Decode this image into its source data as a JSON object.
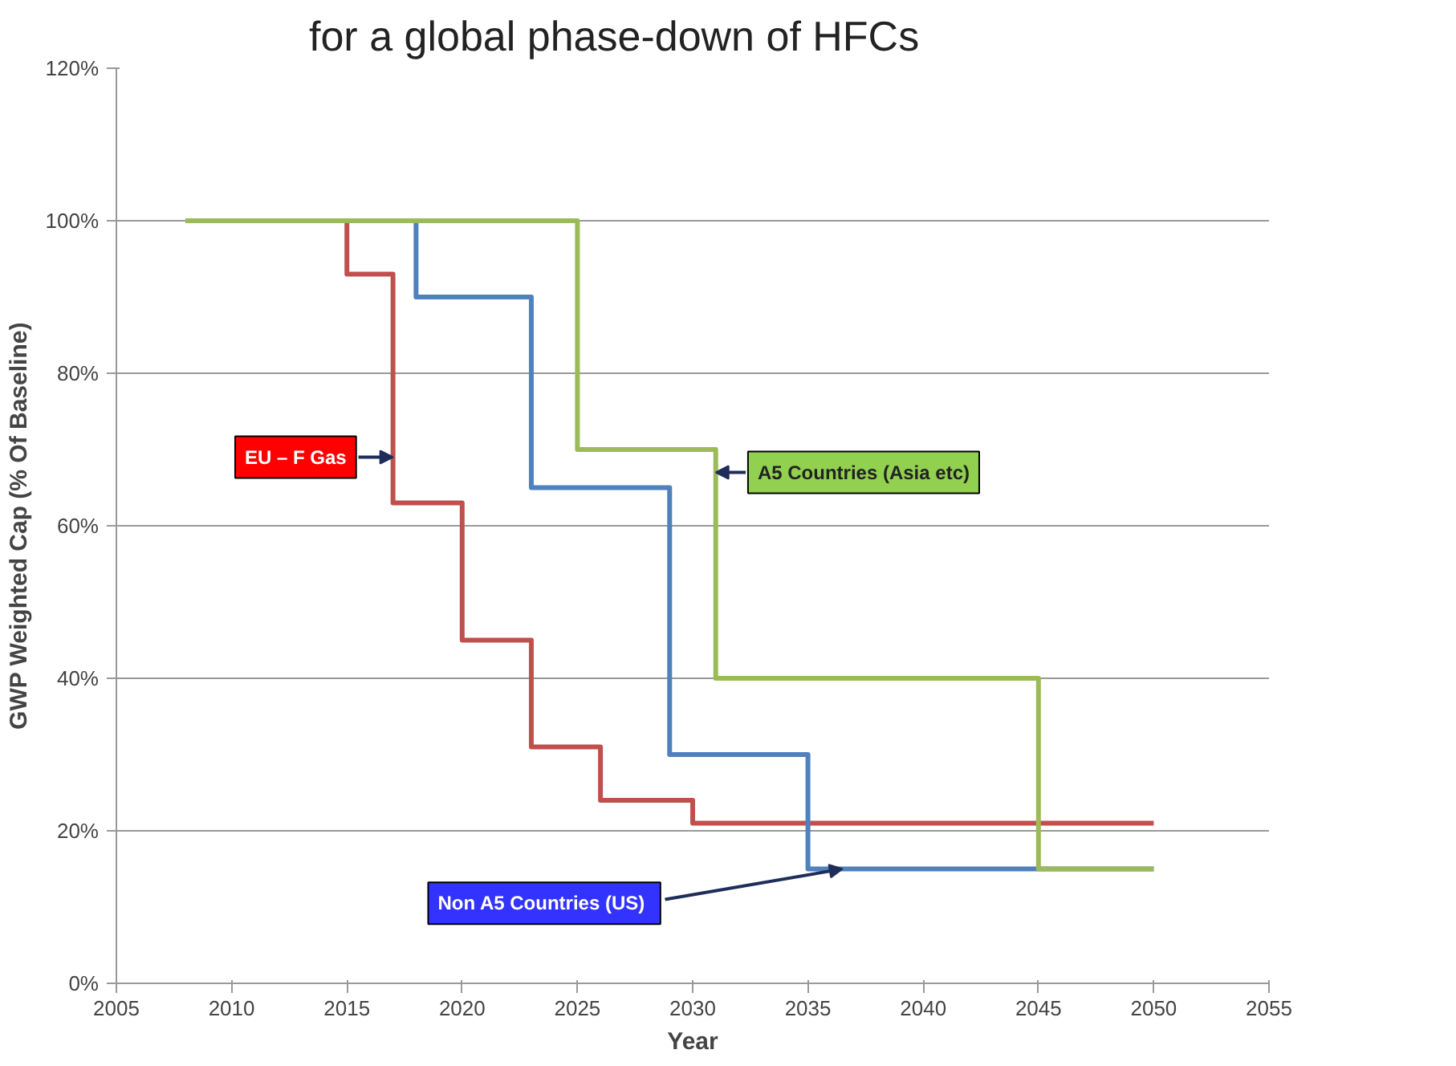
{
  "chart_data": {
    "type": "step",
    "title": "for a global phase-down of HFCs",
    "xlabel": "Year",
    "ylabel": "GWP Weighted Cap (% Of Baseline)",
    "xlim": [
      2005,
      2055
    ],
    "xticks": [
      2005,
      2010,
      2015,
      2020,
      2025,
      2030,
      2035,
      2040,
      2045,
      2050,
      2055
    ],
    "ylim": [
      0,
      120
    ],
    "yticks": [
      {
        "value": 0,
        "label": "0%"
      },
      {
        "value": 20,
        "label": "20%"
      },
      {
        "value": 40,
        "label": "40%"
      },
      {
        "value": 60,
        "label": "60%"
      },
      {
        "value": 80,
        "label": "80%"
      },
      {
        "value": 100,
        "label": "100%"
      },
      {
        "value": 120,
        "label": "120%"
      }
    ],
    "grid": "y",
    "legend": false,
    "series": [
      {
        "name": "EU – F Gas",
        "color": "#c0504d",
        "x": [
          2008,
          2015,
          2017,
          2020,
          2023,
          2026,
          2030,
          2050
        ],
        "values": [
          100,
          93,
          63,
          45,
          31,
          24,
          21,
          21
        ]
      },
      {
        "name": "Non  A5 Countries (US)",
        "color": "#4f81bd",
        "x": [
          2008,
          2018,
          2023,
          2029,
          2035,
          2050
        ],
        "values": [
          100,
          90,
          65,
          30,
          15,
          15
        ]
      },
      {
        "name": "A5 Countries (Asia etc)",
        "color": "#9bbb59",
        "x": [
          2008,
          2025,
          2031,
          2045,
          2050
        ],
        "values": [
          100,
          70,
          40,
          15,
          15
        ]
      }
    ]
  }
}
